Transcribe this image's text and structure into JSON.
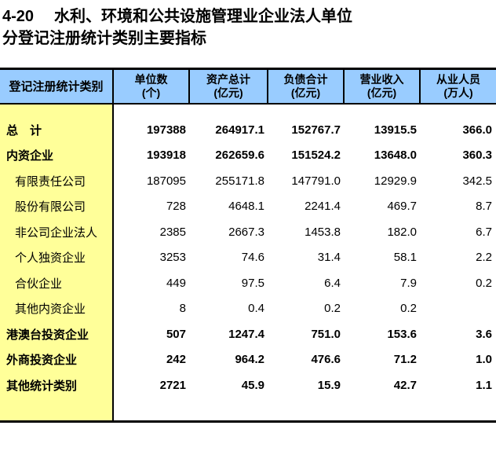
{
  "title": {
    "no": "4-20",
    "line1": "水利、环境和公共设施管理业企业法人单位",
    "line2": "分登记注册统计类别主要指标"
  },
  "table": {
    "corner_header": "登记注册统计类别",
    "columns": [
      {
        "label": "单位数",
        "unit": "(个)"
      },
      {
        "label": "资产总计",
        "unit": "(亿元)"
      },
      {
        "label": "负债合计",
        "unit": "(亿元)"
      },
      {
        "label": "营业收入",
        "unit": "(亿元)"
      },
      {
        "label": "从业人员",
        "unit": "(万人)"
      }
    ],
    "rows": [
      {
        "label": "总　计",
        "bold": true,
        "indent": false,
        "values": [
          "197388",
          "264917.1",
          "152767.7",
          "13915.5",
          "366.0"
        ]
      },
      {
        "label": "内资企业",
        "bold": true,
        "indent": false,
        "values": [
          "193918",
          "262659.6",
          "151524.2",
          "13648.0",
          "360.3"
        ]
      },
      {
        "label": "有限责任公司",
        "bold": false,
        "indent": true,
        "values": [
          "187095",
          "255171.8",
          "147791.0",
          "12929.9",
          "342.5"
        ]
      },
      {
        "label": "股份有限公司",
        "bold": false,
        "indent": true,
        "values": [
          "728",
          "4648.1",
          "2241.4",
          "469.7",
          "8.7"
        ]
      },
      {
        "label": "非公司企业法人",
        "bold": false,
        "indent": true,
        "values": [
          "2385",
          "2667.3",
          "1453.8",
          "182.0",
          "6.7"
        ]
      },
      {
        "label": "个人独资企业",
        "bold": false,
        "indent": true,
        "values": [
          "3253",
          "74.6",
          "31.4",
          "58.1",
          "2.2"
        ]
      },
      {
        "label": "合伙企业",
        "bold": false,
        "indent": true,
        "values": [
          "449",
          "97.5",
          "6.4",
          "7.9",
          "0.2"
        ]
      },
      {
        "label": "其他内资企业",
        "bold": false,
        "indent": true,
        "values": [
          "8",
          "0.4",
          "0.2",
          "0.2",
          ""
        ]
      },
      {
        "label": "港澳台投资企业",
        "bold": true,
        "indent": false,
        "values": [
          "507",
          "1247.4",
          "751.0",
          "153.6",
          "3.6"
        ]
      },
      {
        "label": "外商投资企业",
        "bold": true,
        "indent": false,
        "values": [
          "242",
          "964.2",
          "476.6",
          "71.2",
          "1.0"
        ]
      },
      {
        "label": "其他统计类别",
        "bold": true,
        "indent": false,
        "values": [
          "2721",
          "45.9",
          "15.9",
          "42.7",
          "1.1"
        ]
      }
    ],
    "colors": {
      "header_bg": "#99CCFF",
      "label_column_bg": "#FFFF99",
      "border": "#000000"
    }
  }
}
